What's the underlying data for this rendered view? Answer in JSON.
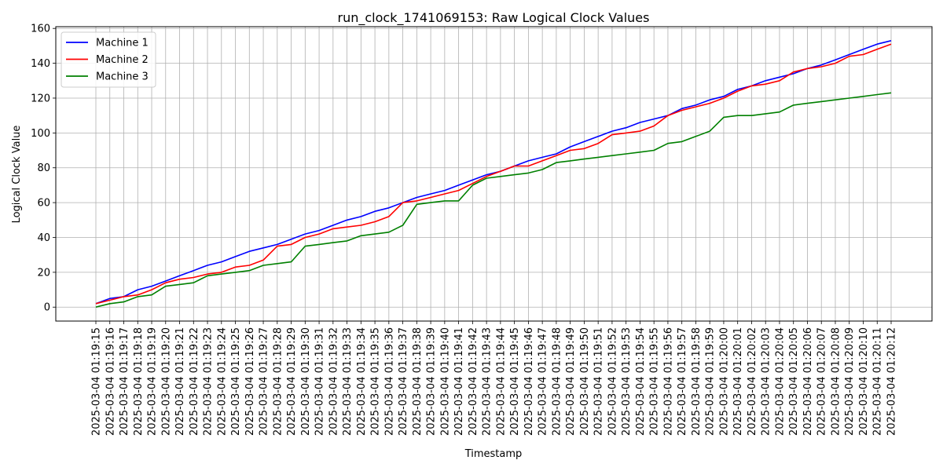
{
  "chart_data": {
    "type": "line",
    "title": "run_clock_1741069153: Raw Logical Clock Values",
    "xlabel": "Timestamp",
    "ylabel": "Logical Clock Value",
    "ylim": [
      -8,
      161
    ],
    "yticks": [
      0,
      20,
      40,
      60,
      80,
      100,
      120,
      140,
      160
    ],
    "grid": true,
    "legend_position": "upper-left",
    "x": [
      "2025-03-04 01:19:15",
      "2025-03-04 01:19:16",
      "2025-03-04 01:19:17",
      "2025-03-04 01:19:18",
      "2025-03-04 01:19:19",
      "2025-03-04 01:19:20",
      "2025-03-04 01:19:21",
      "2025-03-04 01:19:22",
      "2025-03-04 01:19:23",
      "2025-03-04 01:19:24",
      "2025-03-04 01:19:25",
      "2025-03-04 01:19:26",
      "2025-03-04 01:19:27",
      "2025-03-04 01:19:28",
      "2025-03-04 01:19:29",
      "2025-03-04 01:19:30",
      "2025-03-04 01:19:31",
      "2025-03-04 01:19:32",
      "2025-03-04 01:19:33",
      "2025-03-04 01:19:34",
      "2025-03-04 01:19:35",
      "2025-03-04 01:19:36",
      "2025-03-04 01:19:37",
      "2025-03-04 01:19:38",
      "2025-03-04 01:19:39",
      "2025-03-04 01:19:40",
      "2025-03-04 01:19:41",
      "2025-03-04 01:19:42",
      "2025-03-04 01:19:43",
      "2025-03-04 01:19:44",
      "2025-03-04 01:19:45",
      "2025-03-04 01:19:46",
      "2025-03-04 01:19:47",
      "2025-03-04 01:19:48",
      "2025-03-04 01:19:49",
      "2025-03-04 01:19:50",
      "2025-03-04 01:19:51",
      "2025-03-04 01:19:52",
      "2025-03-04 01:19:53",
      "2025-03-04 01:19:54",
      "2025-03-04 01:19:55",
      "2025-03-04 01:19:56",
      "2025-03-04 01:19:57",
      "2025-03-04 01:19:58",
      "2025-03-04 01:19:59",
      "2025-03-04 01:20:00",
      "2025-03-04 01:20:01",
      "2025-03-04 01:20:02",
      "2025-03-04 01:20:03",
      "2025-03-04 01:20:04",
      "2025-03-04 01:20:05",
      "2025-03-04 01:20:06",
      "2025-03-04 01:20:07",
      "2025-03-04 01:20:08",
      "2025-03-04 01:20:09",
      "2025-03-04 01:20:10",
      "2025-03-04 01:20:11",
      "2025-03-04 01:20:12"
    ],
    "series": [
      {
        "name": "Machine 1",
        "color": "#0000ff",
        "values": [
          2,
          5,
          6,
          10,
          12,
          15,
          18,
          21,
          24,
          26,
          29,
          32,
          34,
          36,
          39,
          42,
          44,
          47,
          50,
          52,
          55,
          57,
          60,
          63,
          65,
          67,
          70,
          73,
          76,
          78,
          81,
          84,
          86,
          88,
          92,
          95,
          98,
          101,
          103,
          106,
          108,
          110,
          114,
          116,
          119,
          121,
          125,
          127,
          130,
          132,
          134,
          137,
          139,
          142,
          145,
          148,
          151,
          153
        ]
      },
      {
        "name": "Machine 2",
        "color": "#ff0000",
        "values": [
          2,
          4,
          6,
          7,
          10,
          14,
          16,
          17,
          19,
          20,
          23,
          24,
          27,
          35,
          36,
          40,
          42,
          45,
          46,
          47,
          49,
          52,
          60,
          61,
          63,
          65,
          67,
          71,
          75,
          78,
          81,
          81,
          84,
          87,
          90,
          91,
          94,
          99,
          100,
          101,
          104,
          110,
          113,
          115,
          117,
          120,
          124,
          127,
          128,
          130,
          135,
          137,
          138,
          140,
          144,
          145,
          148,
          151
        ]
      },
      {
        "name": "Machine 3",
        "color": "#008000",
        "values": [
          0,
          2,
          3,
          6,
          7,
          12,
          13,
          14,
          18,
          19,
          20,
          21,
          24,
          25,
          26,
          35,
          36,
          37,
          38,
          41,
          42,
          43,
          47,
          59,
          60,
          61,
          61,
          70,
          74,
          75,
          76,
          77,
          79,
          83,
          84,
          85,
          86,
          87,
          88,
          89,
          90,
          94,
          95,
          98,
          101,
          109,
          110,
          110,
          111,
          112,
          116,
          117,
          118,
          119,
          120,
          121,
          122,
          123
        ]
      }
    ]
  }
}
